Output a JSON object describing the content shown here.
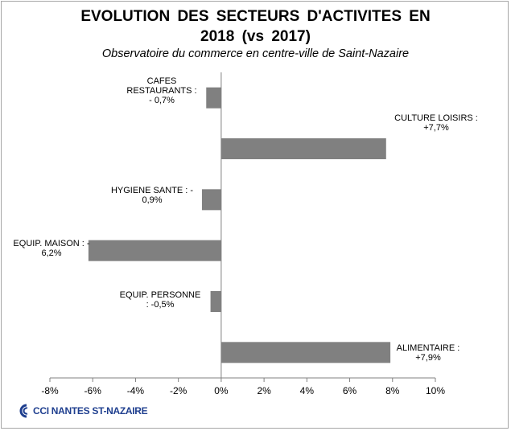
{
  "title_line1": "EVOLUTION DES SECTEURS D'ACTIVITES EN",
  "title_line2": "2018 (vs 2017)",
  "subtitle": "Observatoire du commerce en centre-ville de Saint-Nazaire",
  "logo_text": "CCI NANTES ST-NAZAIRE",
  "colors": {
    "bar": "#808080",
    "axis": "#808080",
    "logo": "#1f3f8f"
  },
  "chart_data": {
    "type": "bar",
    "orientation": "horizontal",
    "categories": [
      "CAFES RESTAURANTS",
      "CULTURE LOISIRS",
      "HYGIENE SANTE",
      "EQUIP. MAISON",
      "EQUIP. PERSONNE",
      "ALIMENTAIRE"
    ],
    "values": [
      -0.7,
      7.7,
      -0.9,
      -6.2,
      -0.5,
      7.9
    ],
    "data_labels": [
      [
        "CAFES",
        "RESTAURANTS :",
        "- 0,7%"
      ],
      [
        "CULTURE LOISIRS :",
        "+7,7%"
      ],
      [
        "HYGIENE SANTE : -",
        "0,9%"
      ],
      [
        "EQUIP. MAISON  : -",
        "6,2%"
      ],
      [
        "EQUIP. PERSONNE",
        ": -0,5%"
      ],
      [
        "ALIMENTAIRE  :",
        "+7,9%"
      ]
    ],
    "x_ticks": [
      -8,
      -6,
      -4,
      -2,
      0,
      2,
      4,
      6,
      8,
      10
    ],
    "x_tick_labels": [
      "-8%",
      "-6%",
      "-4%",
      "-2%",
      "0%",
      "2%",
      "4%",
      "6%",
      "8%",
      "10%"
    ],
    "xlim": [
      -8,
      10
    ],
    "grid": false,
    "legend": "none",
    "xlabel": "",
    "ylabel": ""
  }
}
